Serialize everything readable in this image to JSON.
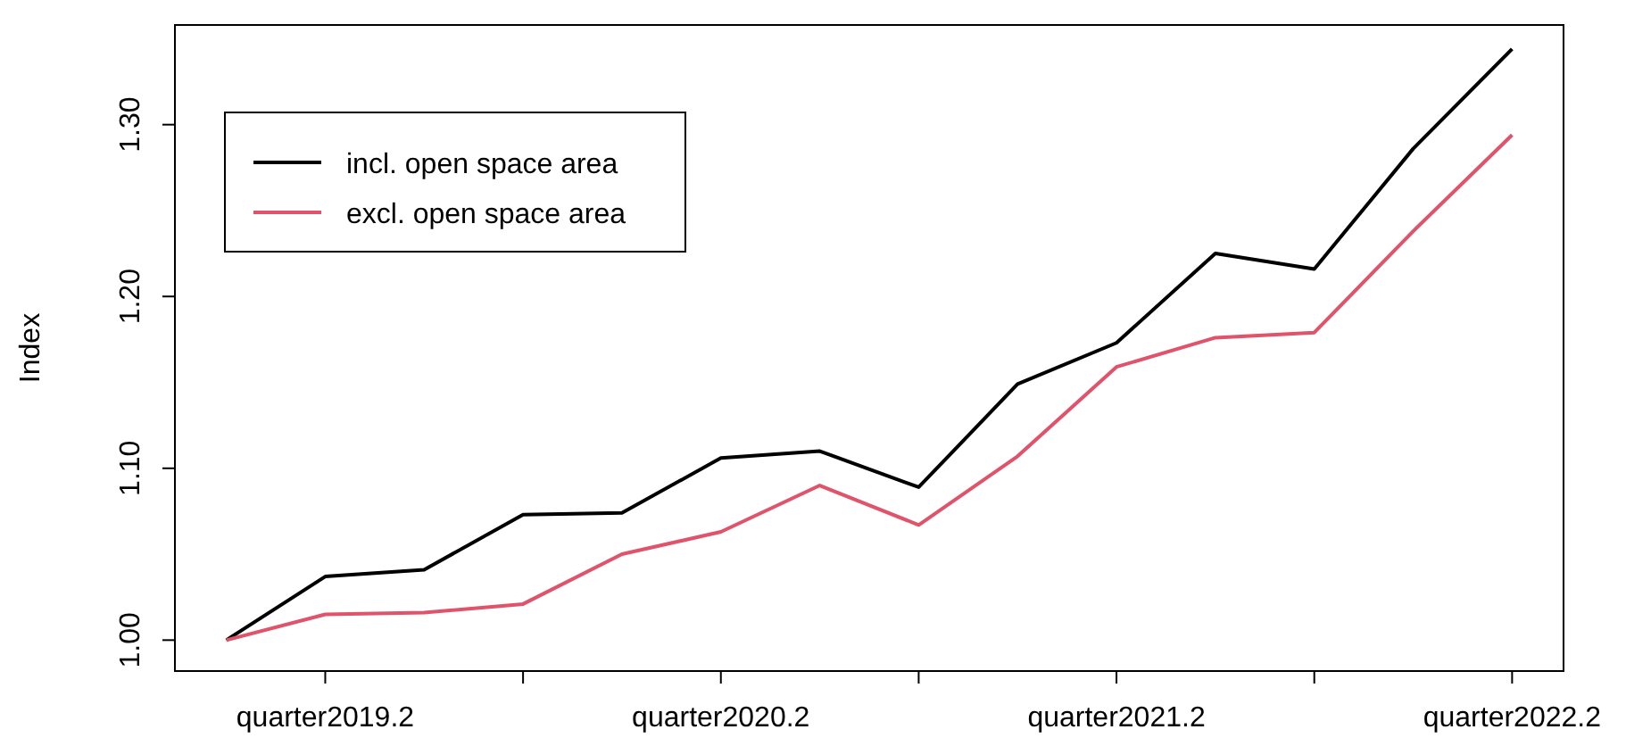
{
  "chart_data": {
    "type": "line",
    "ylabel": "Index",
    "categories": [
      null,
      "quarter2019.2",
      null,
      null,
      null,
      "quarter2020.2",
      null,
      null,
      null,
      "quarter2021.2",
      null,
      null,
      null,
      "quarter2022.2"
    ],
    "ylim": [
      0.982,
      1.358
    ],
    "yticks": [
      {
        "value": 1,
        "label": "1.00"
      },
      {
        "value": 1.1,
        "label": "1.10"
      },
      {
        "value": 1.2,
        "label": "1.20"
      },
      {
        "value": 1.3,
        "label": "1.30"
      }
    ],
    "series": [
      {
        "name": "incl. open space area",
        "color": "#000000",
        "values": [
          1.0,
          1.037,
          1.041,
          1.073,
          1.074,
          1.106,
          1.11,
          1.089,
          1.149,
          1.173,
          1.225,
          1.216,
          1.286,
          1.344
        ]
      },
      {
        "name": "excl. open space area",
        "color": "#df536b",
        "values": [
          1.0,
          1.015,
          1.016,
          1.021,
          1.05,
          1.063,
          1.09,
          1.067,
          1.107,
          1.159,
          1.176,
          1.179,
          1.238,
          1.294
        ]
      }
    ],
    "legend": "top left",
    "grid": false,
    "marker": "none",
    "line_style": "solid"
  }
}
